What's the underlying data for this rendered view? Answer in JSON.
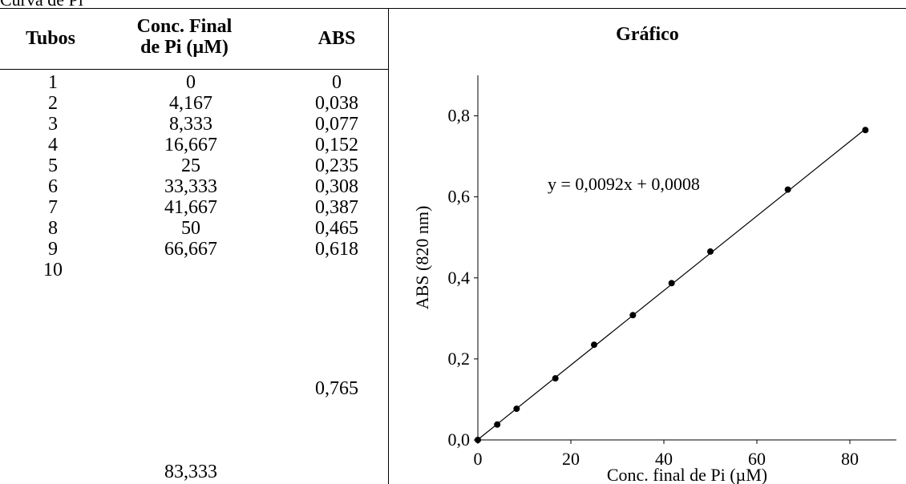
{
  "caption": "Curva de Pi",
  "table": {
    "headers": {
      "tubos": "Tubos",
      "conc_line1": "Conc. Final",
      "conc_line2": "de Pi (µM)",
      "abs": "ABS"
    },
    "tubos": [
      "1",
      "2",
      "3",
      "4",
      "5",
      "6",
      "7",
      "8",
      "9",
      "10"
    ],
    "conc": [
      "0",
      "4,167",
      "8,333",
      "16,667",
      "25",
      "33,333",
      "41,667",
      "50",
      "66,667",
      "83,333"
    ],
    "abs": [
      "0",
      "0,038",
      "0,077",
      "0,152",
      "0,235",
      "0,308",
      "0,387",
      "0,465",
      "0,618",
      "0,765"
    ]
  },
  "chart_title": "Gráfico",
  "chart_data": {
    "type": "scatter",
    "title": "Gráfico",
    "xlabel": "Conc. final de Pi (µM)",
    "ylabel": "ABS (820 nm)",
    "xlim": [
      0,
      90
    ],
    "ylim": [
      0,
      0.9
    ],
    "x_ticks": [
      0,
      20,
      40,
      60,
      80
    ],
    "x_tick_labels": [
      "0",
      "20",
      "40",
      "60",
      "80"
    ],
    "y_ticks": [
      0,
      0.2,
      0.4,
      0.6,
      0.8
    ],
    "y_tick_labels": [
      "0,0",
      "0,2",
      "0,4",
      "0,6",
      "0,8"
    ],
    "grid": false,
    "legend": "none",
    "series": [
      {
        "x": [
          0,
          4.167,
          8.333,
          16.667,
          25,
          33.333,
          41.667,
          50,
          66.667,
          83.333
        ],
        "y": [
          0,
          0.038,
          0.077,
          0.152,
          0.235,
          0.308,
          0.387,
          0.465,
          0.618,
          0.765
        ]
      }
    ],
    "trendline": {
      "slope": 0.0092,
      "intercept": 0.0008,
      "x_range": [
        0,
        83.333
      ]
    },
    "annotation": "y = 0,0092x + 0,0008",
    "marker_color": "#000000"
  }
}
